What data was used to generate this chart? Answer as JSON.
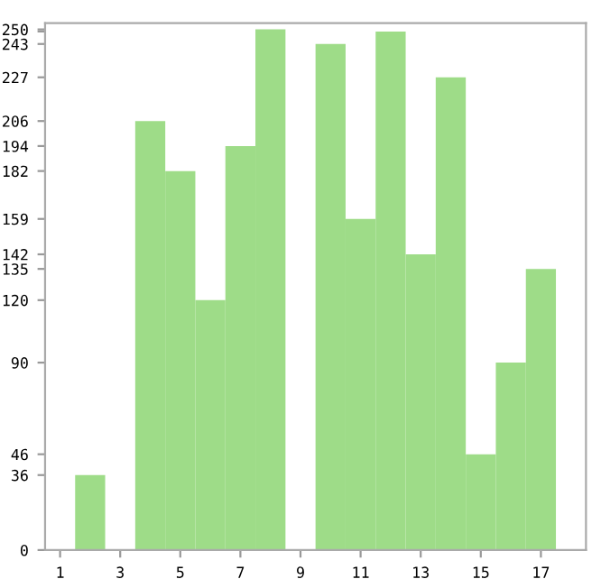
{
  "chart_data": {
    "type": "bar",
    "categories": [
      "1",
      null,
      "3",
      null,
      "5",
      null,
      "7",
      null,
      "9",
      null,
      "11",
      null,
      "13",
      null,
      "15",
      null,
      "17",
      null
    ],
    "values": [
      0,
      36,
      0,
      206,
      182,
      120,
      194,
      250,
      0,
      243,
      159,
      249,
      142,
      227,
      46,
      90,
      135,
      0
    ],
    "color": "#9edc88",
    "ylim": [
      0,
      253
    ],
    "yticks": [
      0,
      36,
      46,
      90,
      120,
      135,
      142,
      159,
      182,
      194,
      206,
      227,
      243,
      {
        "value": 249,
        "label": null
      },
      250
    ],
    "grid": false
  }
}
